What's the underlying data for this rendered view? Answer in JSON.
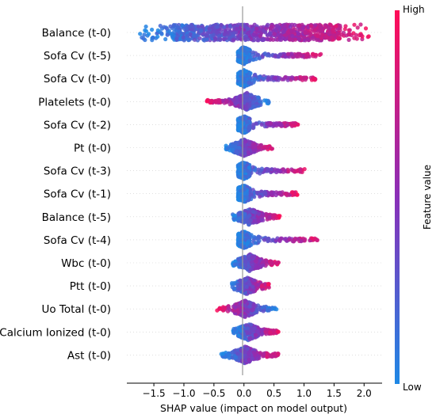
{
  "chart_data": {
    "type": "scatter",
    "subtype": "shap-beeswarm",
    "xlabel": "SHAP value (impact on model output)",
    "xlim": [
      -1.95,
      2.3
    ],
    "xticks": [
      -1.5,
      -1.0,
      -0.5,
      0.0,
      0.5,
      1.0,
      1.5,
      2.0
    ],
    "xtick_labels": [
      "−1.5",
      "−1.0",
      "−0.5",
      "0.0",
      "0.5",
      "1.0",
      "1.5",
      "2.0"
    ],
    "colorbar": {
      "title": "Feature value",
      "high_label": "High",
      "low_label": "Low",
      "low_color": "#1e88e5",
      "high_color": "#ff0d57"
    },
    "features": [
      {
        "name": "Balance (t-0)",
        "min": -1.75,
        "max": 2.1,
        "core": [
          -1.2,
          1.6
        ],
        "spread": 0.9,
        "direction": "positive"
      },
      {
        "name": "Sofa Cv (t-5)",
        "min": -0.1,
        "max": 1.28,
        "core": [
          -0.1,
          0.1
        ],
        "spread": 0.45,
        "direction": "positive"
      },
      {
        "name": "Sofa Cv (t-0)",
        "min": -0.1,
        "max": 1.2,
        "core": [
          -0.1,
          0.1
        ],
        "spread": 0.45,
        "direction": "positive"
      },
      {
        "name": "Platelets (t-0)",
        "min": -0.62,
        "max": 0.42,
        "core": [
          -0.15,
          0.25
        ],
        "spread": 0.55,
        "direction": "negative"
      },
      {
        "name": "Sofa Cv (t-2)",
        "min": -0.1,
        "max": 0.9,
        "core": [
          -0.1,
          0.1
        ],
        "spread": 0.45,
        "direction": "positive"
      },
      {
        "name": "Pt (t-0)",
        "min": -0.3,
        "max": 0.48,
        "core": [
          -0.2,
          0.2
        ],
        "spread": 0.6,
        "direction": "positive"
      },
      {
        "name": "Sofa Cv (t-3)",
        "min": -0.1,
        "max": 1.02,
        "core": [
          -0.1,
          0.1
        ],
        "spread": 0.45,
        "direction": "positive"
      },
      {
        "name": "Sofa Cv (t-1)",
        "min": -0.1,
        "max": 0.9,
        "core": [
          -0.1,
          0.1
        ],
        "spread": 0.45,
        "direction": "positive"
      },
      {
        "name": "Balance (t-5)",
        "min": -0.2,
        "max": 0.6,
        "core": [
          -0.1,
          0.3
        ],
        "spread": 0.55,
        "direction": "positive"
      },
      {
        "name": "Sofa Cv (t-4)",
        "min": -0.1,
        "max": 1.25,
        "core": [
          -0.1,
          0.1
        ],
        "spread": 0.5,
        "direction": "positive"
      },
      {
        "name": "Wbc (t-0)",
        "min": -0.2,
        "max": 0.58,
        "core": [
          -0.1,
          0.3
        ],
        "spread": 0.5,
        "direction": "positive"
      },
      {
        "name": "Ptt (t-0)",
        "min": -0.2,
        "max": 0.42,
        "core": [
          -0.1,
          0.2
        ],
        "spread": 0.5,
        "direction": "positive"
      },
      {
        "name": "Uo Total (t-0)",
        "min": -0.45,
        "max": 0.55,
        "core": [
          -0.15,
          0.2
        ],
        "spread": 0.5,
        "direction": "negative"
      },
      {
        "name": "Calcium Ionized (t-0)",
        "min": -0.18,
        "max": 0.58,
        "core": [
          -0.1,
          0.25
        ],
        "spread": 0.5,
        "direction": "positive"
      },
      {
        "name": "Ast (t-0)",
        "min": -0.38,
        "max": 0.58,
        "core": [
          -0.15,
          0.2
        ],
        "spread": 0.4,
        "direction": "positive"
      }
    ]
  }
}
